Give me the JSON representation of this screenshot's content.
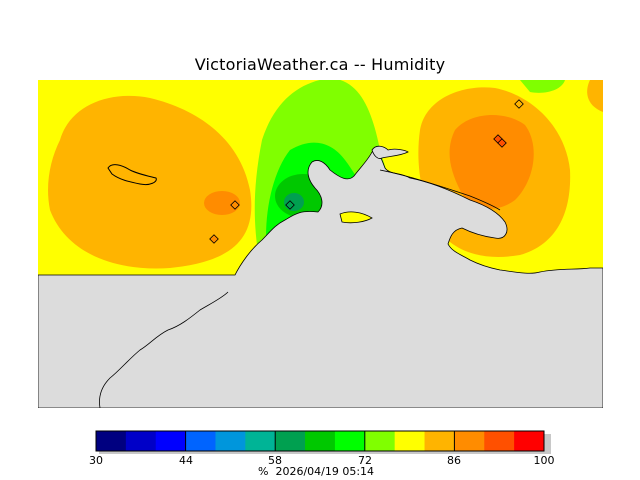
{
  "title": "VictoriaWeather.ca -- Humidity",
  "legend": {
    "ticks": [
      "30",
      "44",
      "58",
      "72",
      "86",
      "100"
    ],
    "colors": [
      "#000080",
      "#0000c8",
      "#0000ff",
      "#0064ff",
      "#0096dc",
      "#00b496",
      "#00a050",
      "#00c800",
      "#00ff00",
      "#80ff00",
      "#ffff00",
      "#ffb400",
      "#ff8c00",
      "#ff5000",
      "#ff0000"
    ],
    "unit": "%",
    "timestamp": "2026/04/19 05:14"
  },
  "map": {
    "land_color": "#dcdcdc",
    "humidity_colors": {
      "yellow": "#ffff00",
      "orange": "#ffb400",
      "dark_orange": "#ff8c00",
      "light_green": "#80ff00",
      "green": "#00ff00",
      "dark_green": "#00c800",
      "teal": "#00a050"
    }
  }
}
